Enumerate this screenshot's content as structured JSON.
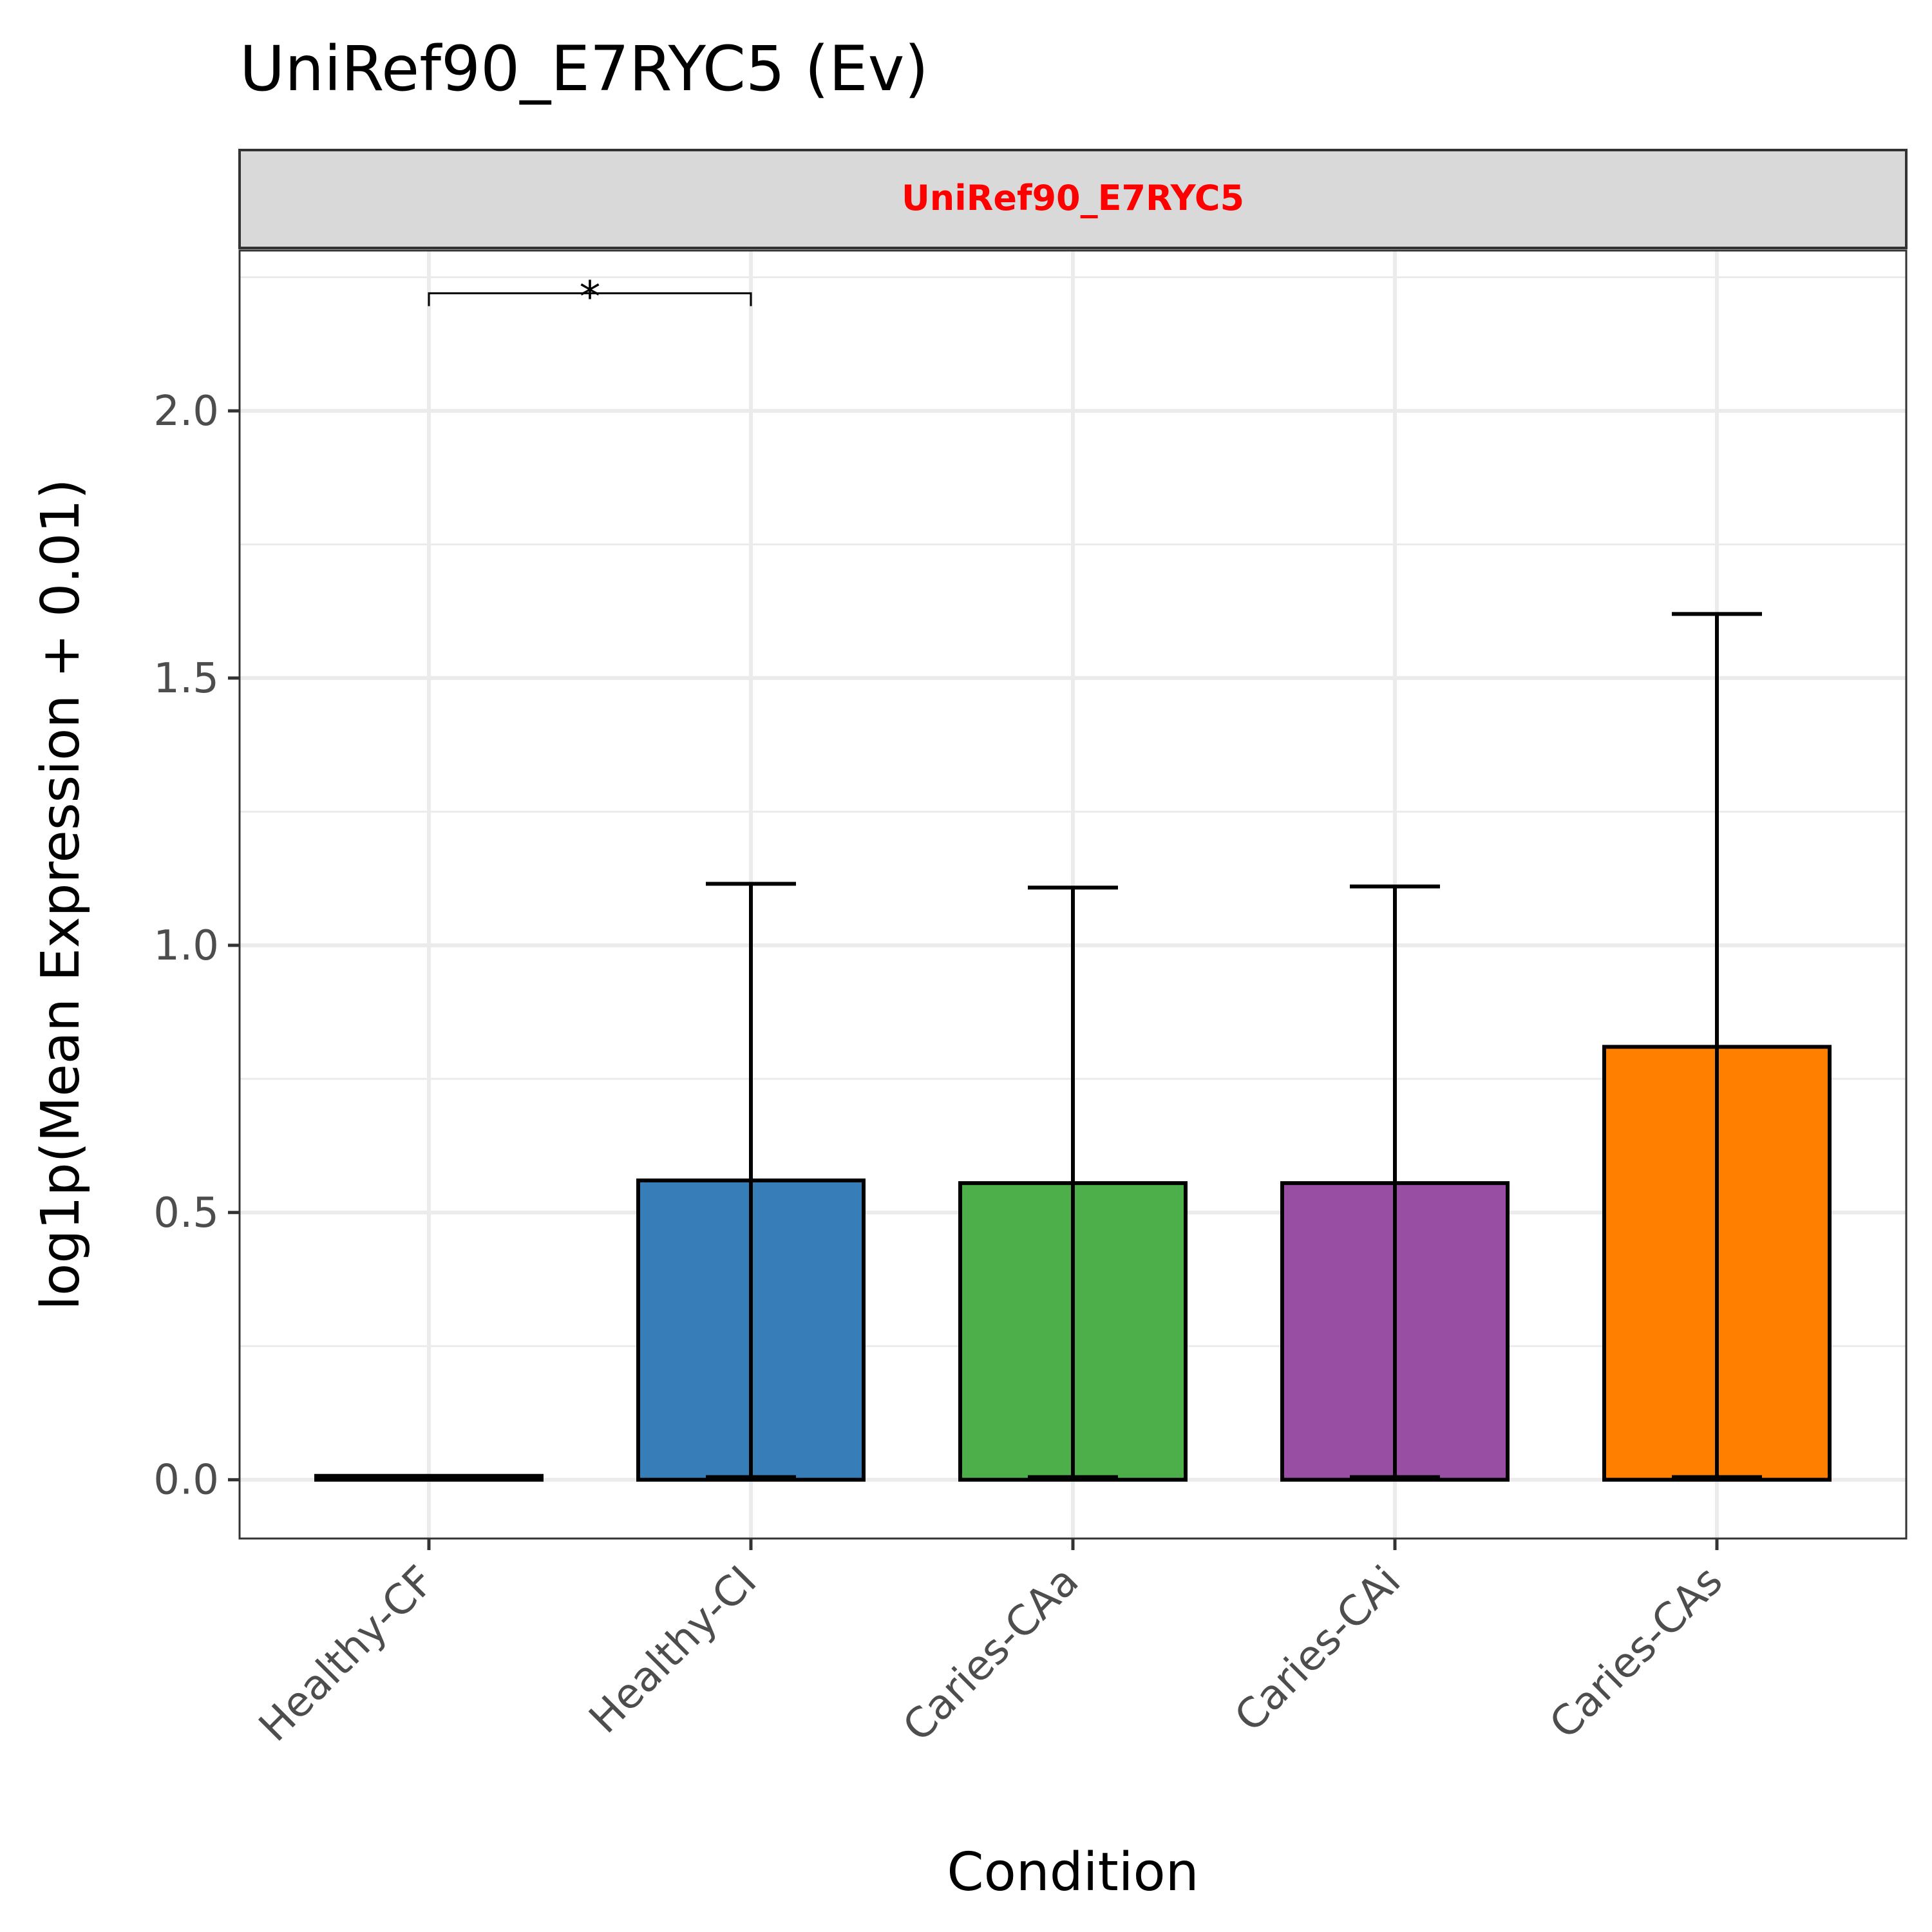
{
  "chart_data": {
    "type": "bar",
    "title": "UniRef90_E7RYC5 (Ev)",
    "facet_label": "UniRef90_E7RYC5",
    "xlabel": "Condition",
    "ylabel": "log1p(Mean Expression + 0.01)",
    "categories": [
      "Healthy-CF",
      "Healthy-CI",
      "Caries-CAa",
      "Caries-CAi",
      "Caries-CAs"
    ],
    "values": [
      0.005,
      0.56,
      0.555,
      0.555,
      0.81
    ],
    "error_low": [
      0.005,
      0.005,
      0.005,
      0.005,
      0.005
    ],
    "error_high": [
      0.005,
      1.115,
      1.108,
      1.11,
      1.62
    ],
    "colors": [
      "#000000",
      "#377EB8",
      "#4DAF4A",
      "#984EA3",
      "#FF7F00"
    ],
    "ylim": [
      -0.11,
      2.3
    ],
    "yticks": [
      0.0,
      0.5,
      1.0,
      1.5,
      2.0
    ],
    "ytick_labels": [
      "0.0",
      "0.5",
      "1.0",
      "1.5",
      "2.0"
    ],
    "grid": true,
    "significance": [
      {
        "from": "Healthy-CF",
        "to": "Healthy-CI",
        "y": 2.22,
        "label": "*"
      }
    ],
    "facet_label_color": "#FF0000"
  }
}
